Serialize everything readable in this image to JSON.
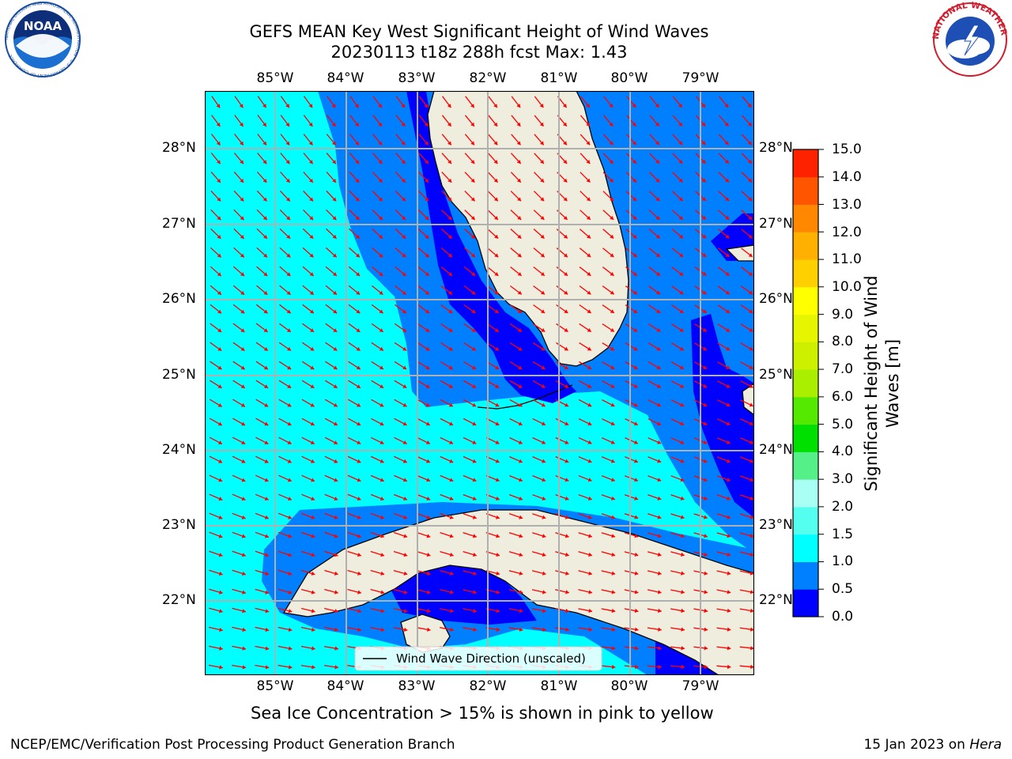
{
  "header": {
    "title_line1": "GEFS MEAN Key West Significant Height of Wind Waves",
    "title_line2": "20230113 t18z 288h fcst   Max: 1.43"
  },
  "map": {
    "lon_labels": [
      "85°W",
      "84°W",
      "83°W",
      "82°W",
      "81°W",
      "80°W",
      "79°W"
    ],
    "lat_labels": [
      "28°N",
      "27°N",
      "26°N",
      "25°N",
      "24°N",
      "23°N",
      "22°N"
    ],
    "legend_label": "Wind Wave Direction (unscaled)",
    "colors": {
      "land": "#eeedde",
      "ocean_low": "#0000ff",
      "ocean_mid": "#0080ff",
      "ocean_high": "#00ffff",
      "arrow": "#ff0000",
      "grid": "#b0b0b0"
    }
  },
  "colorbar": {
    "ticks": [
      "15.0",
      "14.0",
      "13.0",
      "12.0",
      "11.0",
      "10.0",
      "9.0",
      "8.0",
      "7.0",
      "6.0",
      "5.0",
      "4.0",
      "3.0",
      "2.0",
      "1.5",
      "1.0",
      "0.5",
      "0.0"
    ],
    "colors": [
      "#0000ff",
      "#0080ff",
      "#00ffff",
      "#55fff0",
      "#aafff5",
      "#55f088",
      "#00e000",
      "#55e800",
      "#aaee00",
      "#ccf000",
      "#e6f500",
      "#ffff00",
      "#ffd000",
      "#ffb000",
      "#ff8800",
      "#ff5500",
      "#ff2200"
    ],
    "label": "Significant Height of Wind Waves [m]"
  },
  "note": "Sea Ice Concentration > 15% is shown in pink to yellow",
  "footer": {
    "left": "NCEP/EMC/Verification Post Processing Product Generation Branch",
    "right_prefix": "15 Jan 2023 on ",
    "right_host": "Hera"
  },
  "logos": {
    "noaa": "NOAA",
    "noaa_ring": "NATIONAL OCEANIC AND ATMOSPHERIC ADMINISTRATION · U.S. DEPARTMENT OF COMMERCE",
    "nws_ring": "NATIONAL WEATHER SERVICE"
  }
}
